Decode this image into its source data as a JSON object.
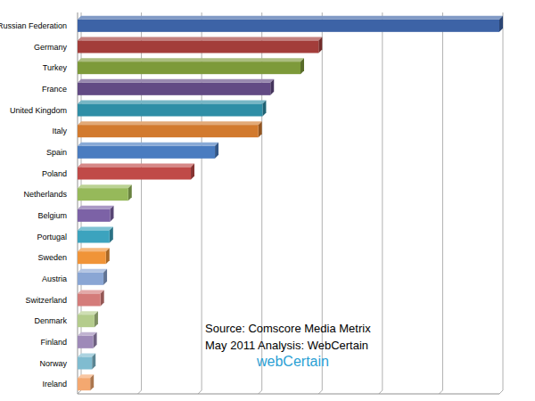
{
  "chart_data": {
    "type": "bar",
    "orientation": "horizontal",
    "categories": [
      "Russian Federation",
      "Germany",
      "Turkey",
      "France",
      "United Kingdom",
      "Italy",
      "Spain",
      "Poland",
      "Netherlands",
      "Belgium",
      "Portugal",
      "Sweden",
      "Austria",
      "Switzerland",
      "Denmark",
      "Finland",
      "Norway",
      "Ireland"
    ],
    "values": [
      70,
      40,
      37,
      32,
      30.7,
      30,
      22.8,
      18.8,
      8.4,
      5.4,
      5.3,
      4.7,
      4.3,
      3.8,
      2.8,
      2.6,
      2.4,
      2.1
    ],
    "colors": [
      "#3d63a6",
      "#a33d3a",
      "#7d9a3a",
      "#624a84",
      "#2f8ea6",
      "#d27a2e",
      "#4a7cc0",
      "#c04a48",
      "#96b95a",
      "#7c62a6",
      "#3ca3be",
      "#f09438",
      "#8aa6d4",
      "#d47c7a",
      "#b4cc8c",
      "#9e8ab8",
      "#80bcd0",
      "#f4a870"
    ],
    "xlim": [
      0,
      70
    ],
    "xticks": [
      0,
      10,
      20,
      30,
      40,
      50,
      60,
      70
    ],
    "grid": true,
    "tick_labels": "y",
    "annotations": [
      "Source: Comscore Media Metrix",
      "May 2011  Analysis: WebCertain",
      "webCertain"
    ]
  }
}
